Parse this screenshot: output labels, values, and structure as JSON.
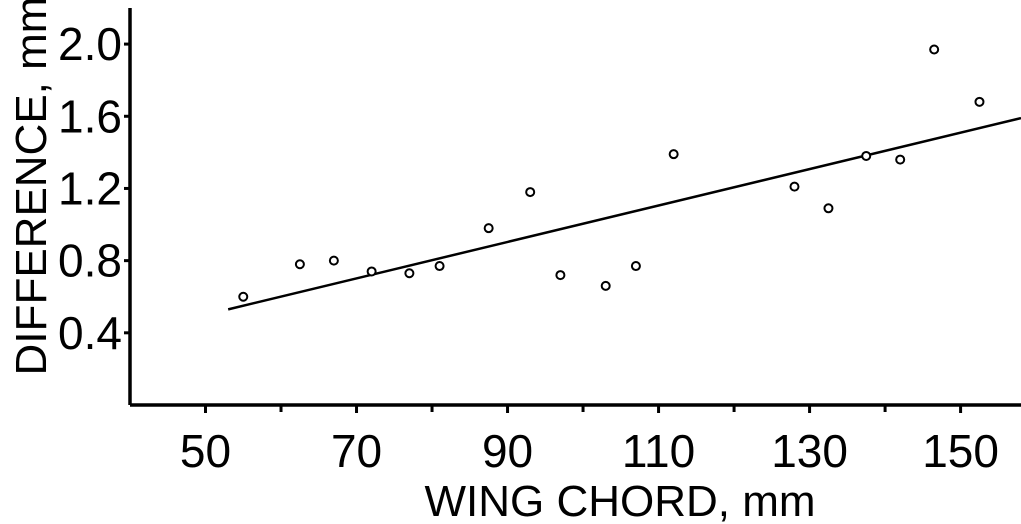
{
  "chart_data": {
    "type": "scatter",
    "xlabel": "WING CHORD, mm",
    "ylabel": "DIFFERENCE, mm",
    "xlim": [
      40,
      158
    ],
    "ylim": [
      0,
      2.2
    ],
    "x_ticks": [
      50,
      70,
      90,
      110,
      130,
      150
    ],
    "x_minor_ticks": [
      60,
      80,
      100,
      120,
      140
    ],
    "y_ticks": [
      0.4,
      0.8,
      1.2,
      1.6,
      2.0
    ],
    "x_tick_labels": [
      "50",
      "70",
      "90",
      "110",
      "130",
      "150"
    ],
    "y_tick_labels": [
      "0.4",
      "0.8",
      "1.2",
      "1.6",
      "2.0"
    ],
    "grid": false,
    "series": [
      {
        "points": [
          {
            "x": 55,
            "y": 0.6
          },
          {
            "x": 62.5,
            "y": 0.78
          },
          {
            "x": 67,
            "y": 0.8
          },
          {
            "x": 72,
            "y": 0.74
          },
          {
            "x": 77,
            "y": 0.73
          },
          {
            "x": 81,
            "y": 0.77
          },
          {
            "x": 87.5,
            "y": 0.98
          },
          {
            "x": 93,
            "y": 1.18
          },
          {
            "x": 97,
            "y": 0.72
          },
          {
            "x": 103,
            "y": 0.66
          },
          {
            "x": 107,
            "y": 0.77
          },
          {
            "x": 112,
            "y": 1.39
          },
          {
            "x": 128,
            "y": 1.21
          },
          {
            "x": 132.5,
            "y": 1.09
          },
          {
            "x": 137.5,
            "y": 1.38
          },
          {
            "x": 142,
            "y": 1.36
          },
          {
            "x": 146.5,
            "y": 1.97
          },
          {
            "x": 152.5,
            "y": 1.68
          }
        ]
      }
    ],
    "trend_line": {
      "x": [
        53,
        158
      ],
      "y": [
        0.53,
        1.59
      ]
    }
  }
}
